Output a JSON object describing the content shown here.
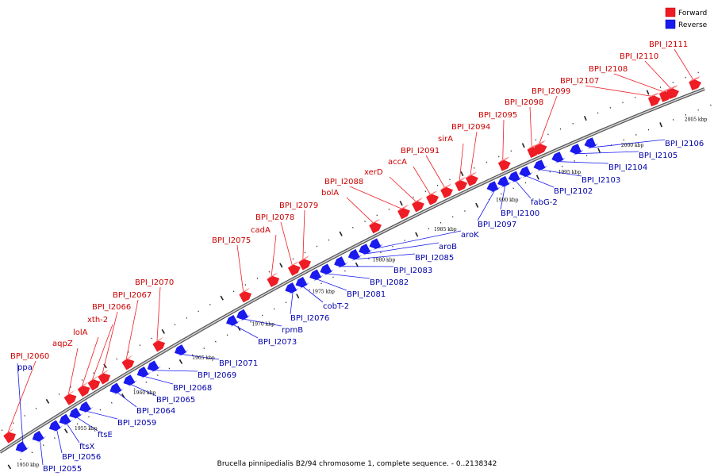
{
  "caption": "Brucella pinnipedialis B2/94 chromosome 1, complete sequence. - 0..2138342",
  "legend": [
    {
      "label": "Forward",
      "color": "#ee1c24"
    },
    {
      "label": "Reverse",
      "color": "#1a1aee"
    }
  ],
  "colors": {
    "forward": "#ee1c24",
    "forward_top": "#f98080",
    "reverse": "#1a1aee",
    "reverse_top": "#7a7aff",
    "axis": "#888888"
  },
  "tick_labels": [
    "1950 kbp",
    "1955 kbp",
    "1960 kbp",
    "1965 kbp",
    "1970 kbp",
    "1975 kbp",
    "1980 kbp",
    "1985 kbp",
    "1990 kbp",
    "1995 kbp",
    "2000 kbp",
    "2005 kbp"
  ],
  "forward_genes": [
    "BPI_I2060",
    "aqpZ",
    "lolA",
    "xth-2",
    "BPI_I2066",
    "BPI_I2067",
    "BPI_I2070",
    "BPI_I2075",
    "cadA",
    "BPI_I2078",
    "BPI_I2079",
    "bolA",
    "BPI_I2088",
    "xerD",
    "accA",
    "BPI_I2091",
    "sirA",
    "BPI_I2094",
    "BPI_I2095",
    "BPI_I2098",
    "BPI_I2099",
    "BPI_I2107",
    "BPI_I2108",
    "BPI_I2110",
    "BPI_I2111"
  ],
  "reverse_genes": [
    "ppa",
    "BPI_I2055",
    "BPI_I2056",
    "ftsX",
    "ftsE",
    "BPI_I2059",
    "BPI_I2064",
    "BPI_I2065",
    "BPI_I2068",
    "BPI_I2069",
    "BPI_I2071",
    "BPI_I2073",
    "rpmB",
    "BPI_I2076",
    "cobT-2",
    "BPI_I2081",
    "BPI_I2082",
    "BPI_I2083",
    "BPI_I2085",
    "aroB",
    "aroK",
    "BPI_I2097",
    "BPI_I2100",
    "fabG-2",
    "BPI_I2102",
    "BPI_I2103",
    "BPI_I2104",
    "BPI_I2105",
    "BPI_I2106"
  ]
}
